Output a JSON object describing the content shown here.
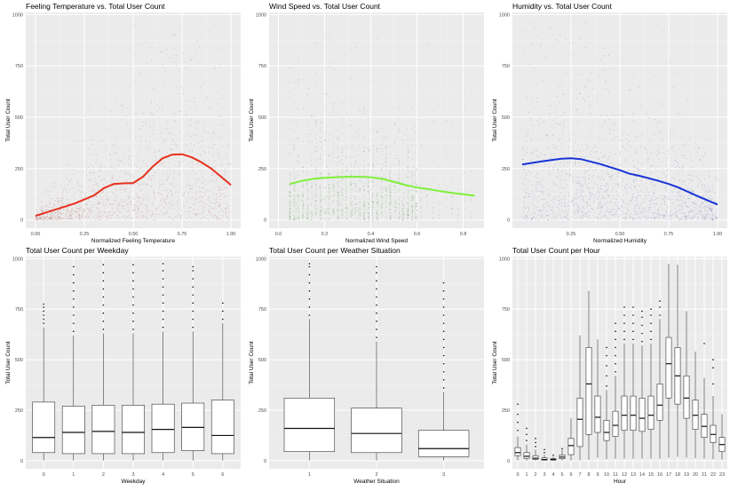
{
  "chart_data": [
    {
      "type": "scatter",
      "title": "Feeling Temperature vs. Total User Count",
      "xlabel": "Normalized Feeling Temperature",
      "ylabel": "Total User Count",
      "xlim": [
        -0.05,
        1.05
      ],
      "ylim": [
        -40,
        1010
      ],
      "xticks": [
        0,
        0.25,
        0.5,
        0.75,
        1
      ],
      "xtick_labels": [
        "0.00",
        "0.25",
        "0.50",
        "0.75",
        "1.00"
      ],
      "yticks": [
        0,
        250,
        500,
        750,
        1000
      ],
      "ytick_labels": [
        "0",
        "250",
        "500",
        "750",
        "1000"
      ],
      "grid": true,
      "point_color": "#8b1a1a",
      "series": [
        {
          "kind": "smooth",
          "color": "#e8301c",
          "x": [
            0,
            0.1,
            0.2,
            0.3,
            0.35,
            0.4,
            0.45,
            0.5,
            0.55,
            0.6,
            0.65,
            0.7,
            0.75,
            0.8,
            0.85,
            0.9,
            0.95,
            1.0
          ],
          "y": [
            20,
            50,
            80,
            120,
            155,
            175,
            178,
            180,
            210,
            260,
            300,
            318,
            320,
            305,
            280,
            250,
            210,
            170
          ]
        }
      ]
    },
    {
      "type": "scatter",
      "title": "Wind Speed vs. Total User Count",
      "xlabel": "Normalized Wind Speed",
      "ylabel": "Total User Count",
      "xlim": [
        -0.04,
        0.89
      ],
      "ylim": [
        -40,
        1010
      ],
      "xticks": [
        0,
        0.2,
        0.4,
        0.6,
        0.8
      ],
      "xtick_labels": [
        "0.0",
        "0.2",
        "0.4",
        "0.6",
        "0.8"
      ],
      "yticks": [
        0,
        250,
        500,
        750,
        1000
      ],
      "ytick_labels": [
        "0",
        "250",
        "500",
        "750",
        "1000"
      ],
      "grid": true,
      "point_color": "#1f6b10",
      "series": [
        {
          "kind": "smooth",
          "color": "#7ef03a",
          "x": [
            0.05,
            0.1,
            0.15,
            0.2,
            0.25,
            0.3,
            0.35,
            0.4,
            0.45,
            0.5,
            0.55,
            0.6,
            0.65,
            0.7,
            0.75,
            0.8,
            0.85
          ],
          "y": [
            175,
            190,
            200,
            205,
            208,
            210,
            210,
            208,
            200,
            185,
            170,
            158,
            150,
            140,
            132,
            125,
            118
          ]
        }
      ]
    },
    {
      "type": "scatter",
      "title": "Humidity vs. Total User Count",
      "xlabel": "Normalized Humidity",
      "ylabel": "Total User Count",
      "xlim": [
        -0.05,
        1.05
      ],
      "ylim": [
        -40,
        1010
      ],
      "xticks": [
        0.25,
        0.5,
        0.75,
        1
      ],
      "xtick_labels": [
        "0.25",
        "0.50",
        "0.75",
        "1.00"
      ],
      "yticks": [
        0,
        250,
        500,
        750,
        1000
      ],
      "ytick_labels": [
        "0",
        "250",
        "500",
        "750",
        "1000"
      ],
      "grid": true,
      "point_color": "#1a1a8b",
      "series": [
        {
          "kind": "smooth",
          "color": "#1733d8",
          "x": [
            0,
            0.1,
            0.2,
            0.25,
            0.3,
            0.4,
            0.5,
            0.55,
            0.6,
            0.7,
            0.75,
            0.8,
            0.9,
            1.0
          ],
          "y": [
            270,
            285,
            298,
            300,
            296,
            272,
            242,
            225,
            215,
            190,
            175,
            158,
            115,
            75
          ]
        }
      ]
    },
    {
      "type": "box",
      "title": "Total User Count per Weekday",
      "xlabel": "Weekday",
      "ylabel": "Total User Count",
      "ylim": [
        -40,
        1010
      ],
      "categories": [
        "0",
        "1",
        "2",
        "3",
        "4",
        "5",
        "6"
      ],
      "yticks": [
        0,
        250,
        500,
        750,
        1000
      ],
      "ytick_labels": [
        "0",
        "250",
        "500",
        "750",
        "1000"
      ],
      "grid": true,
      "boxes": [
        {
          "min": 1,
          "q1": 40,
          "median": 115,
          "q3": 290,
          "max": 660,
          "outliers": [
            680,
            700,
            720,
            740,
            760,
            775
          ]
        },
        {
          "min": 1,
          "q1": 35,
          "median": 140,
          "q3": 270,
          "max": 620,
          "outliers": [
            640,
            680,
            720,
            760,
            800,
            840,
            880,
            920,
            960
          ]
        },
        {
          "min": 1,
          "q1": 35,
          "median": 145,
          "q3": 275,
          "max": 630,
          "outliers": [
            650,
            690,
            730,
            770,
            810,
            850,
            890,
            930,
            970
          ]
        },
        {
          "min": 1,
          "q1": 35,
          "median": 140,
          "q3": 275,
          "max": 630,
          "outliers": [
            650,
            690,
            730,
            770,
            810,
            850,
            890,
            930,
            970
          ]
        },
        {
          "min": 1,
          "q1": 40,
          "median": 155,
          "q3": 280,
          "max": 640,
          "outliers": [
            660,
            700,
            740,
            780,
            820,
            860,
            900,
            940,
            975
          ]
        },
        {
          "min": 1,
          "q1": 50,
          "median": 165,
          "q3": 285,
          "max": 640,
          "outliers": [
            660,
            700,
            740,
            780,
            820,
            860,
            900,
            940,
            960
          ]
        },
        {
          "min": 1,
          "q1": 35,
          "median": 125,
          "q3": 300,
          "max": 680,
          "outliers": [
            700,
            740,
            780
          ]
        }
      ]
    },
    {
      "type": "box",
      "title": "Total User Count per Weather Situation",
      "xlabel": "Weather Situation",
      "ylabel": "Total User Count",
      "ylim": [
        -40,
        1010
      ],
      "categories": [
        "1",
        "2",
        "3"
      ],
      "yticks": [
        0,
        250,
        500,
        750,
        1000
      ],
      "ytick_labels": [
        "0",
        "250",
        "500",
        "750",
        "1000"
      ],
      "grid": true,
      "boxes": [
        {
          "min": 1,
          "q1": 45,
          "median": 160,
          "q3": 310,
          "max": 700,
          "outliers": [
            720,
            760,
            800,
            840,
            880,
            920,
            960,
            975
          ]
        },
        {
          "min": 1,
          "q1": 40,
          "median": 135,
          "q3": 260,
          "max": 590,
          "outliers": [
            610,
            650,
            690,
            730,
            770,
            810,
            850,
            890,
            930,
            960
          ]
        },
        {
          "min": 1,
          "q1": 20,
          "median": 60,
          "q3": 150,
          "max": 340,
          "outliers": [
            360,
            400,
            440,
            480,
            520,
            560,
            600,
            640,
            680,
            720,
            760,
            800,
            840,
            880
          ]
        }
      ]
    },
    {
      "type": "box",
      "title": "Total User Count per Hour",
      "xlabel": "Hour",
      "ylabel": "Total User Count",
      "ylim": [
        -40,
        1010
      ],
      "categories": [
        "0",
        "1",
        "2",
        "3",
        "4",
        "5",
        "6",
        "7",
        "8",
        "9",
        "10",
        "11",
        "12",
        "13",
        "14",
        "15",
        "16",
        "17",
        "18",
        "19",
        "20",
        "21",
        "22",
        "23"
      ],
      "yticks": [
        0,
        250,
        500,
        750,
        1000
      ],
      "ytick_labels": [
        "0",
        "250",
        "500",
        "750",
        "1000"
      ],
      "grid": true,
      "boxes": [
        {
          "min": 2,
          "q1": 25,
          "median": 40,
          "q3": 65,
          "max": 120,
          "outliers": [
            150,
            190,
            230,
            280
          ]
        },
        {
          "min": 1,
          "q1": 12,
          "median": 22,
          "q3": 40,
          "max": 80,
          "outliers": [
            100,
            130,
            160
          ]
        },
        {
          "min": 1,
          "q1": 6,
          "median": 12,
          "q3": 25,
          "max": 55,
          "outliers": [
            70,
            90,
            110
          ]
        },
        {
          "min": 1,
          "q1": 3,
          "median": 6,
          "q3": 14,
          "max": 30,
          "outliers": [
            40,
            55
          ]
        },
        {
          "min": 1,
          "q1": 3,
          "median": 6,
          "q3": 10,
          "max": 20,
          "outliers": [
            28
          ]
        },
        {
          "min": 1,
          "q1": 10,
          "median": 18,
          "q3": 28,
          "max": 55,
          "outliers": [
            60
          ]
        },
        {
          "min": 1,
          "q1": 30,
          "median": 75,
          "q3": 110,
          "max": 210
        },
        {
          "min": 1,
          "q1": 70,
          "median": 205,
          "q3": 310,
          "max": 620
        },
        {
          "min": 5,
          "q1": 130,
          "median": 380,
          "q3": 560,
          "max": 840
        },
        {
          "min": 15,
          "q1": 140,
          "median": 215,
          "q3": 320,
          "max": 600
        },
        {
          "min": 8,
          "q1": 100,
          "median": 140,
          "q3": 200,
          "max": 350,
          "outliers": [
            370,
            420,
            470,
            520,
            560
          ]
        },
        {
          "min": 10,
          "q1": 120,
          "median": 175,
          "q3": 245,
          "max": 420,
          "outliers": [
            440,
            480,
            520,
            560,
            600,
            640,
            680
          ]
        },
        {
          "min": 10,
          "q1": 150,
          "median": 225,
          "q3": 320,
          "max": 580,
          "outliers": [
            600,
            640,
            680,
            720,
            760
          ]
        },
        {
          "min": 10,
          "q1": 150,
          "median": 225,
          "q3": 320,
          "max": 580,
          "outliers": [
            600,
            640,
            680,
            720,
            760
          ]
        },
        {
          "min": 10,
          "q1": 145,
          "median": 210,
          "q3": 310,
          "max": 570,
          "outliers": [
            590,
            630,
            670,
            710,
            740
          ]
        },
        {
          "min": 10,
          "q1": 155,
          "median": 225,
          "q3": 320,
          "max": 580,
          "outliers": [
            600,
            640,
            680,
            720,
            750
          ]
        },
        {
          "min": 10,
          "q1": 200,
          "median": 275,
          "q3": 380,
          "max": 700,
          "outliers": [
            720,
            760,
            790
          ]
        },
        {
          "min": 15,
          "q1": 310,
          "median": 480,
          "q3": 610,
          "max": 975
        },
        {
          "min": 20,
          "q1": 280,
          "median": 420,
          "q3": 560,
          "max": 970
        },
        {
          "min": 15,
          "q1": 210,
          "median": 310,
          "q3": 420,
          "max": 740
        },
        {
          "min": 12,
          "q1": 155,
          "median": 225,
          "q3": 300,
          "max": 540
        },
        {
          "min": 10,
          "q1": 115,
          "median": 170,
          "q3": 230,
          "max": 410,
          "outliers": [
            580
          ]
        },
        {
          "min": 8,
          "q1": 90,
          "median": 130,
          "q3": 175,
          "max": 320,
          "outliers": [
            380,
            460,
            500
          ]
        },
        {
          "min": 5,
          "q1": 45,
          "median": 80,
          "q3": 115,
          "max": 230
        }
      ]
    }
  ]
}
